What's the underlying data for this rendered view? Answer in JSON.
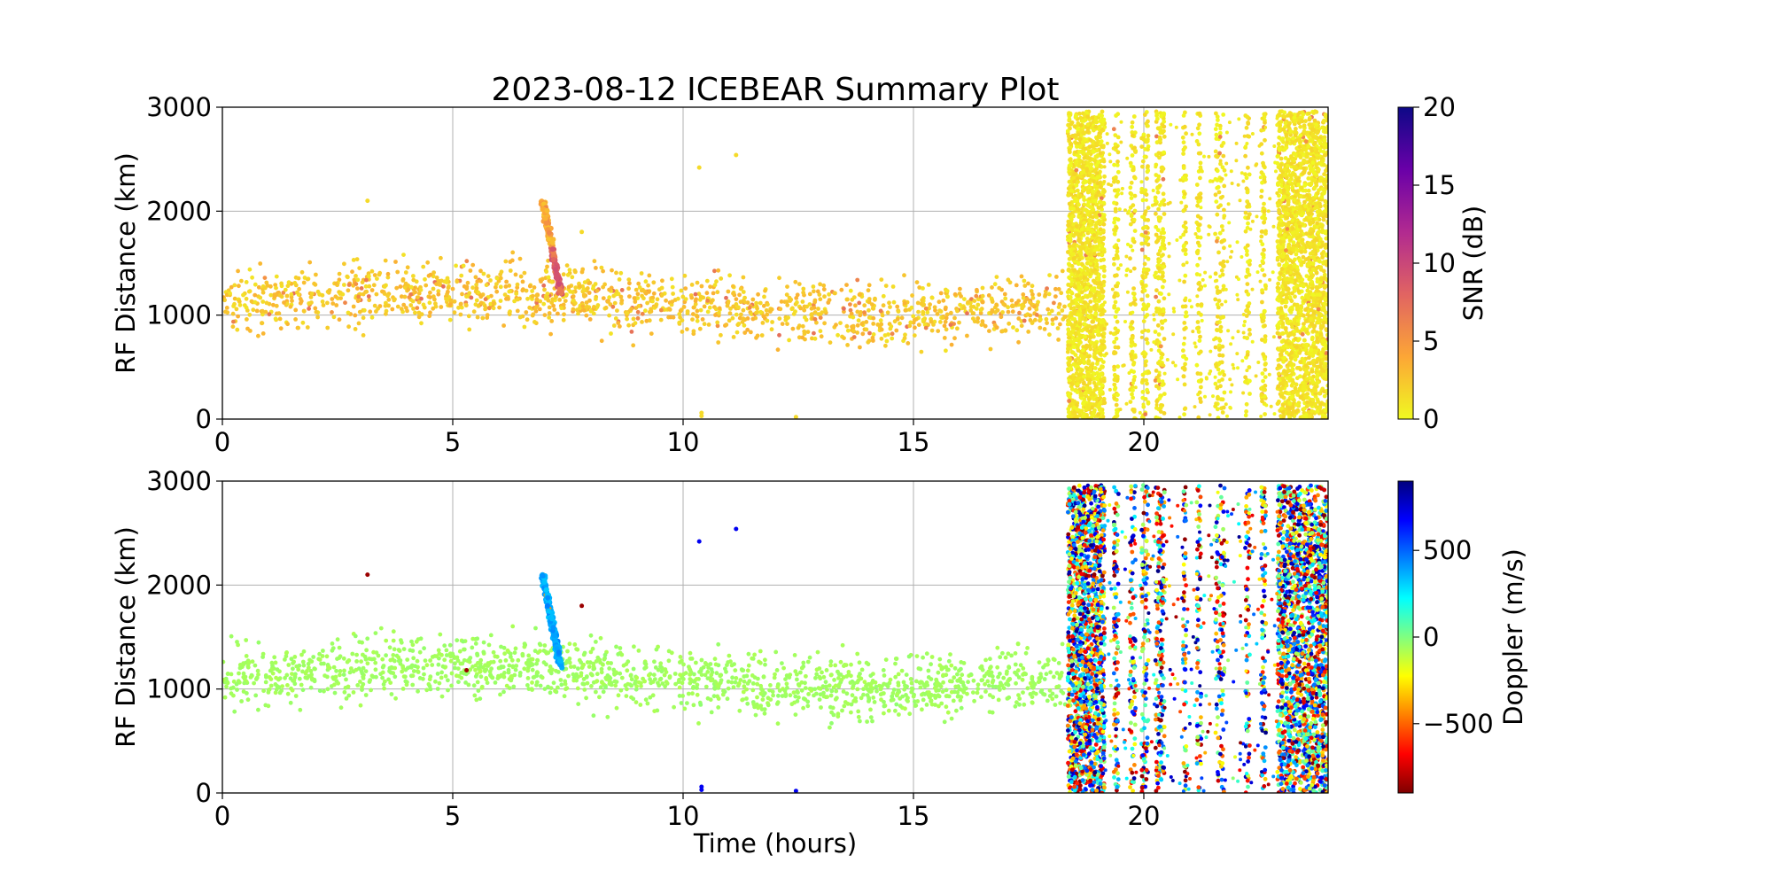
{
  "figure": {
    "title": "2023-08-12 ICEBEAR Summary Plot"
  },
  "chart_data": [
    {
      "type": "scatter",
      "name": "snr-panel",
      "title": "2023-08-12 ICEBEAR Summary Plot",
      "xlabel": "",
      "ylabel": "RF Distance (km)",
      "xlim": [
        0,
        24
      ],
      "ylim": [
        0,
        3000
      ],
      "xticks": [
        0,
        5,
        10,
        15,
        20
      ],
      "yticks": [
        0,
        1000,
        2000,
        3000
      ],
      "grid": true,
      "color_variable": "SNR (dB)",
      "colorbar": {
        "label": "SNR (dB)",
        "range": [
          0,
          20
        ],
        "ticks": [
          0,
          5,
          10,
          15,
          20
        ],
        "colormap": "plasma_r",
        "stops": [
          "#f0f921",
          "#fca636",
          "#e16462",
          "#b12a90",
          "#6a00a8",
          "#0d0887"
        ]
      },
      "regions": [
        {
          "label": "sparse-echoes",
          "x_range": [
            0,
            18.3
          ],
          "y_range": [
            300,
            2000
          ],
          "typical_value": 1.5
        },
        {
          "label": "echo-streak",
          "x_range": [
            6.9,
            7.4
          ],
          "y_range": [
            1200,
            2100
          ],
          "typical_value": 3.5
        },
        {
          "label": "dense-band",
          "x_range": [
            18.3,
            19.2
          ],
          "y_range": [
            0,
            2950
          ],
          "typical_value": 0.5
        },
        {
          "label": "dense-band",
          "x_range": [
            22.7,
            24
          ],
          "y_range": [
            0,
            2950
          ],
          "typical_value": 0.5
        }
      ]
    },
    {
      "type": "scatter",
      "name": "doppler-panel",
      "title": "",
      "xlabel": "Time (hours)",
      "ylabel": "RF Distance (km)",
      "xlim": [
        0,
        24
      ],
      "ylim": [
        0,
        3000
      ],
      "xticks": [
        0,
        5,
        10,
        15,
        20
      ],
      "yticks": [
        0,
        1000,
        2000,
        3000
      ],
      "grid": true,
      "color_variable": "Doppler (m/s)",
      "colorbar": {
        "label": "Doppler (m/s)",
        "range": [
          -900,
          900
        ],
        "ticks": [
          -500,
          0,
          500
        ],
        "tick_labels": [
          "−500",
          "0",
          "500"
        ],
        "colormap": "jet_r",
        "stops": [
          "#7f0000",
          "#ff0000",
          "#ff8000",
          "#ffff00",
          "#80ff80",
          "#00ffff",
          "#0080ff",
          "#0000ff",
          "#00007f"
        ]
      },
      "regions": [
        {
          "label": "sparse-echoes",
          "x_range": [
            0,
            18.3
          ],
          "y_range": [
            300,
            2000
          ],
          "typical_value": -30
        },
        {
          "label": "echo-streak",
          "x_range": [
            6.9,
            7.4
          ],
          "y_range": [
            1200,
            2100
          ],
          "typical_value": 450
        },
        {
          "label": "dense-band",
          "x_range": [
            18.3,
            19.2
          ],
          "y_range": [
            0,
            2950
          ],
          "typical_value": "mixed -900..900"
        },
        {
          "label": "dense-band",
          "x_range": [
            22.7,
            24
          ],
          "y_range": [
            0,
            2950
          ],
          "typical_value": "mixed -900..900"
        }
      ]
    }
  ]
}
